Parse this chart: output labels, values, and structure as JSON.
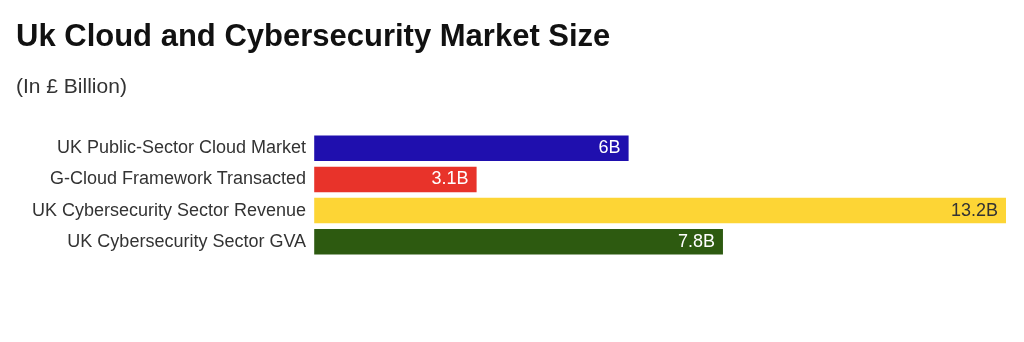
{
  "chart_data": {
    "type": "bar",
    "orientation": "horizontal",
    "title": "Uk Cloud and Cybersecurity Market Size",
    "subtitle": "(In £ Billion)",
    "categories": [
      "UK Public-Sector Cloud Market",
      "G-Cloud Framework Transacted",
      "UK Cybersecurity Sector Revenue",
      "UK Cybersecurity Sector GVA"
    ],
    "values": [
      6,
      3.1,
      13.2,
      7.8
    ],
    "colors": [
      "#1f0fae",
      "#e8332a",
      "#fdd535",
      "#2d5a10"
    ],
    "value_labels": [
      "6B",
      "3.1B",
      "13.2B",
      "7.8B"
    ],
    "grid": false,
    "legend": false
  }
}
